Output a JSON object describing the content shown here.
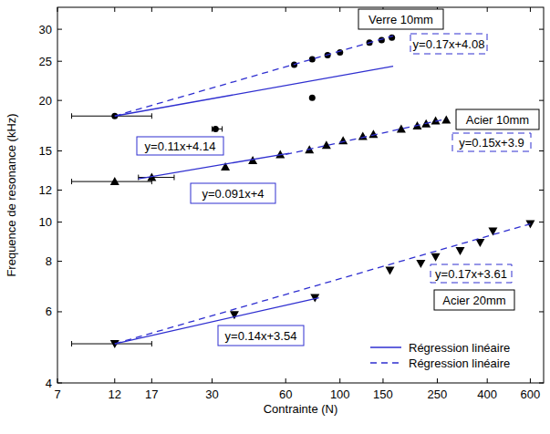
{
  "chart_data": {
    "type": "scatter",
    "x_label": "Contrainte (N)",
    "y_label": "Frequence de resonance (kHz)",
    "log": true,
    "grid": false,
    "legend": "lower right",
    "xlim": [
      7,
      680
    ],
    "ylim": [
      4,
      34
    ],
    "xticks": [
      7,
      12,
      17,
      30,
      60,
      100,
      150,
      250,
      400,
      600
    ],
    "yticks": [
      4,
      6,
      8,
      10,
      12,
      15,
      20,
      25,
      30
    ],
    "series": [
      {
        "name": "Verre 10mm",
        "type": "scatter",
        "marker": "circle",
        "color": "#000000",
        "x": [
          12,
          31,
          65,
          77,
          77,
          89,
          100,
          132,
          148,
          163
        ],
        "values": [
          18.3,
          17.0,
          24.5,
          20.3,
          25.3,
          25.9,
          26.3,
          27.8,
          28.2,
          28.6
        ],
        "x_error": [
          [
            8,
            17
          ],
          [
            30,
            33
          ],
          null,
          null,
          null,
          null,
          null,
          null,
          null,
          null
        ]
      },
      {
        "name": "Régression linéaire",
        "type": "line",
        "line_style": "solid",
        "color": "#2f2fd0",
        "label": "y=0.11x+4.14",
        "x": [
          12,
          165
        ],
        "values": [
          18.3,
          24.3
        ]
      },
      {
        "name": "Régression linéaire",
        "type": "line",
        "line_style": "dashed",
        "color": "#2f2fd0",
        "label": "y=0.17x+4.08",
        "x": [
          12,
          165
        ],
        "values": [
          18.3,
          28.9
        ]
      },
      {
        "name": "Acier 10mm",
        "type": "scatter",
        "marker": "triangle",
        "color": "#000000",
        "x": [
          12,
          17,
          34,
          44,
          57,
          75,
          88,
          103,
          124,
          137,
          178,
          207,
          225,
          246,
          272
        ],
        "values": [
          12.6,
          12.9,
          13.7,
          14.2,
          14.7,
          15.1,
          15.5,
          15.9,
          16.3,
          16.5,
          17.0,
          17.3,
          17.5,
          17.8,
          17.9
        ],
        "x_error": [
          [
            8,
            17
          ],
          [
            15,
            21
          ],
          null,
          null,
          null,
          null,
          null,
          null,
          null,
          null,
          null,
          null,
          null,
          null,
          null
        ]
      },
      {
        "name": "Régression linéaire",
        "type": "line",
        "line_style": "solid",
        "color": "#2f2fd0",
        "label": "y=0.091x+4",
        "x": [
          15,
          62
        ],
        "values": [
          12.8,
          14.8
        ]
      },
      {
        "name": "Régression linéaire",
        "type": "line",
        "line_style": "dashed",
        "color": "#2f2fd0",
        "label": "y=0.15x+3.9",
        "x": [
          60,
          272
        ],
        "values": [
          14.7,
          18.0
        ]
      },
      {
        "name": "Acier 20mm",
        "type": "scatter",
        "marker": "triangle-down",
        "color": "#000000",
        "x": [
          12,
          37,
          79,
          160,
          214,
          246,
          310,
          374,
          422,
          600
        ],
        "values": [
          5.0,
          5.9,
          6.5,
          7.6,
          7.9,
          8.2,
          8.5,
          8.9,
          9.5,
          9.9
        ],
        "x_error": [
          [
            8,
            17
          ],
          null,
          null,
          null,
          null,
          null,
          null,
          null,
          null,
          null
        ]
      },
      {
        "name": "Régression linéaire",
        "type": "line",
        "line_style": "solid",
        "color": "#2f2fd0",
        "label": "y=0.14x+3.54",
        "x": [
          12,
          82
        ],
        "values": [
          5.0,
          6.5
        ]
      },
      {
        "name": "Régression linéaire",
        "type": "line",
        "line_style": "dashed",
        "color": "#2f2fd0",
        "label": "y=0.17x+3.61",
        "x": [
          12,
          600
        ],
        "values": [
          5.0,
          9.9
        ]
      }
    ]
  }
}
